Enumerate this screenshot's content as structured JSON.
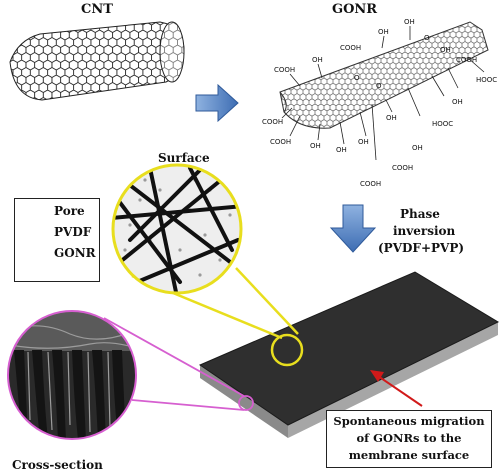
{
  "titles": {
    "cnt": "CNT",
    "gonr": "GONR"
  },
  "legend": {
    "pore": "Pore",
    "pvdf": "PVDF",
    "gonr": "GONR"
  },
  "surface_label": "Surface",
  "phase": {
    "line1": "Phase",
    "line2": "inversion",
    "line3": "(PVDF+PVP)"
  },
  "cross_section_label": "Cross-section",
  "migration": {
    "line1": "Spontaneous migration",
    "line2": "of GONRs to the",
    "line3": "membrane surface"
  },
  "functional_groups": {
    "cooh1": "COOH",
    "cooh2": "COOH",
    "cooh3": "COOH",
    "cooh4": "COOH",
    "cooh5": "COOH",
    "cooh6": "COOH",
    "cooh7": "COOH",
    "hooc1": "HOOC",
    "hooc2": "HOOC",
    "oh1": "OH",
    "oh2": "OH",
    "oh3": "OH",
    "oh4": "OH",
    "oh5": "OH",
    "oh6": "OH",
    "oh7": "OH",
    "oh8": "OH",
    "oh9": "OH",
    "oh10": "OH",
    "o1": "O",
    "o2": "O",
    "o3": "O"
  },
  "colors": {
    "arrow_blue": "#4a7ec4",
    "zoom_yellow": "#e8de1e",
    "zoom_magenta": "#d65fd0",
    "migration_arrow": "#d11a1a",
    "membrane": "#2b2b2b"
  }
}
